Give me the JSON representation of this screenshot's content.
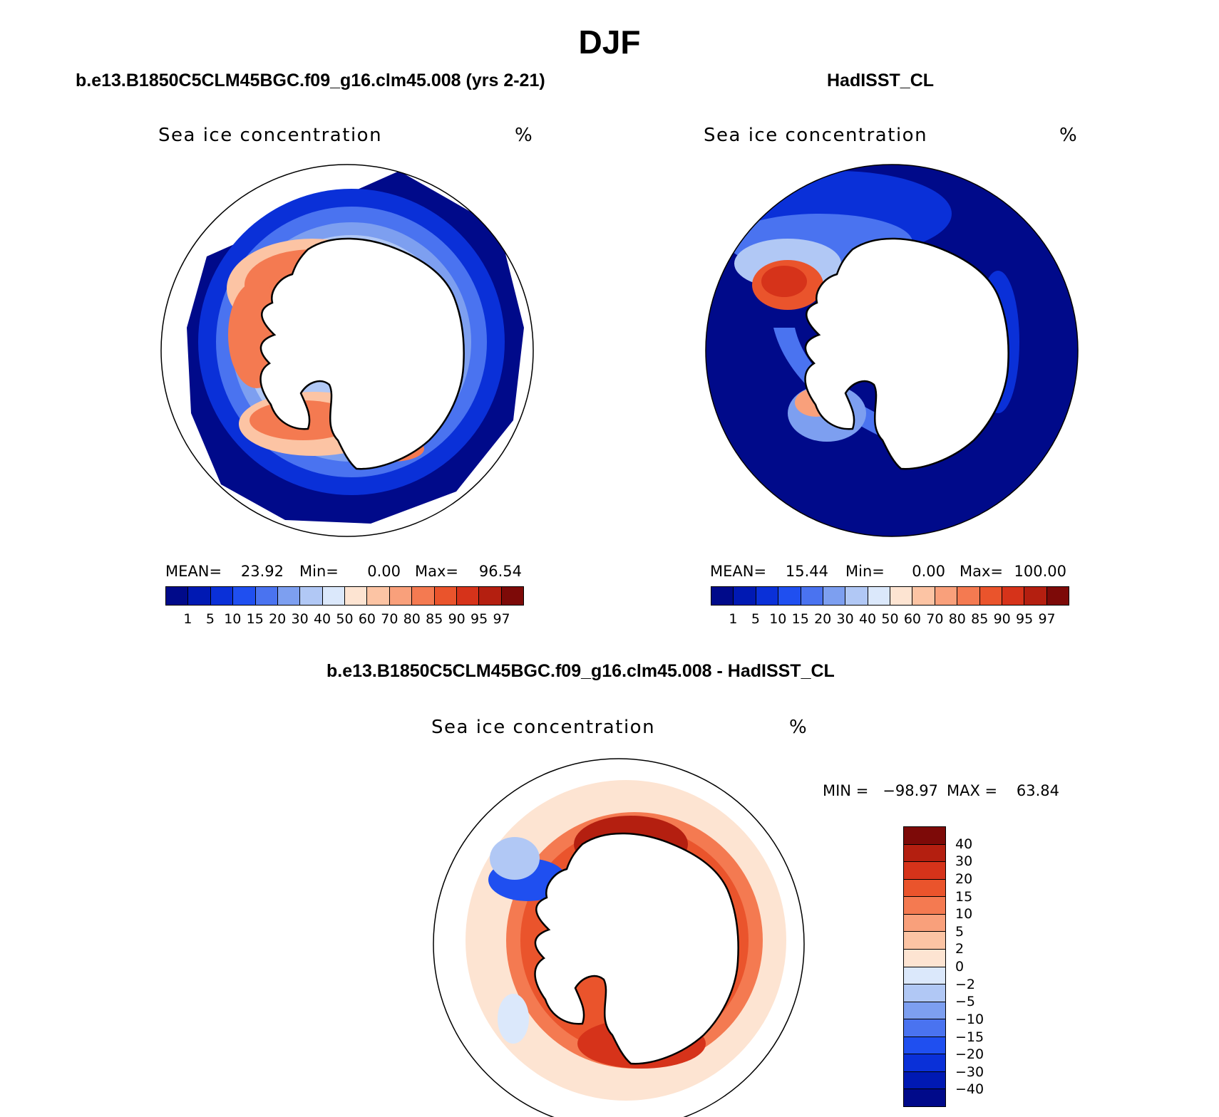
{
  "title": "DJF",
  "unit_symbol": "%",
  "panels": [
    {
      "title": "b.e13.B1850C5CLM45BGC.f09_g16.clm45.008 (yrs 2-21)",
      "variable": "Sea ice concentration",
      "unit": "%",
      "stats": {
        "mean_label": "MEAN=",
        "mean": "23.92",
        "min_label": "Min=",
        "min": "0.00",
        "max_label": "Max=",
        "max": "96.54"
      }
    },
    {
      "title": "HadISST_CL",
      "variable": "Sea ice concentration",
      "unit": "%",
      "stats": {
        "mean_label": "MEAN=",
        "mean": "15.44",
        "min_label": "Min=",
        "min": "0.00",
        "max_label": "Max=",
        "max": "100.00"
      }
    },
    {
      "title": "b.e13.B1850C5CLM45BGC.f09_g16.clm45.008 - HadISST_CL",
      "variable": "Sea ice concentration",
      "unit": "%",
      "stats": {
        "min_label": "MIN =",
        "min": "−98.97",
        "max_label": "MAX =",
        "max": "63.84"
      }
    }
  ],
  "colorbar_abs": {
    "levels": [
      "1",
      "5",
      "10",
      "15",
      "20",
      "30",
      "40",
      "50",
      "60",
      "70",
      "80",
      "85",
      "90",
      "95",
      "97"
    ],
    "colors": [
      "#000a8a",
      "#0019b3",
      "#0a30d8",
      "#1f4ff0",
      "#4a73f0",
      "#7d9ff0",
      "#b1c8f5",
      "#dbe8fb",
      "#fde4d2",
      "#fcc4a4",
      "#f9a07b",
      "#f47a51",
      "#ea542c",
      "#d6331a",
      "#b41f10",
      "#7d0a08"
    ]
  },
  "colorbar_diff": {
    "levels": [
      "40",
      "30",
      "20",
      "15",
      "10",
      "5",
      "2",
      "0",
      "−2",
      "−5",
      "−10",
      "−15",
      "−20",
      "−30",
      "−40"
    ],
    "colors": [
      "#7d0a08",
      "#b41f10",
      "#d6331a",
      "#ea542c",
      "#f47a51",
      "#f9a07b",
      "#fcc4a4",
      "#fde4d2",
      "#dbe8fb",
      "#b1c8f5",
      "#7d9ff0",
      "#4a73f0",
      "#1f4ff0",
      "#0a30d8",
      "#0019b3",
      "#000a8a"
    ]
  },
  "map_colors": {
    "ocean_low": "#000a8a",
    "ice_edge": "#4a73f0",
    "ice_mid": "#b1c8f5",
    "ice_high": "#f47a51",
    "ice_max": "#d6331a",
    "diff_bg": "#fde4d2",
    "diff_pos": "#ea542c",
    "diff_pos_max": "#b41f10",
    "diff_neg": "#4a73f0",
    "land": "#ffffff"
  }
}
